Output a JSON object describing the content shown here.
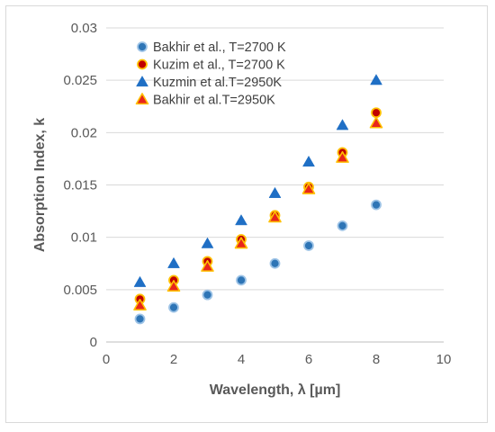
{
  "chart_data": {
    "type": "scatter",
    "xlabel": "Wavelength, λ [µm]",
    "ylabel": "Absorption Index, k",
    "xlim": [
      0,
      10
    ],
    "ylim": [
      0,
      0.03
    ],
    "x_ticks": [
      "0",
      "2",
      "4",
      "6",
      "8",
      "10"
    ],
    "y_ticks": [
      "0",
      "0.005",
      "0.01",
      "0.015",
      "0.02",
      "0.025",
      "0.03"
    ],
    "grid": "horizontal",
    "legend_position": "top-left",
    "series": [
      {
        "name": "Bakhir et al., T=2700 K",
        "marker": "circle",
        "fill": "#2e75b6",
        "stroke": "#9dc3e6",
        "x": [
          1,
          2,
          3,
          4,
          5,
          6,
          7,
          8
        ],
        "y": [
          0.0022,
          0.0033,
          0.0045,
          0.0059,
          0.0075,
          0.0092,
          0.0111,
          0.0131
        ]
      },
      {
        "name": "Kuzim et al., T=2700 K",
        "marker": "circle",
        "fill": "#c00000",
        "stroke": "#ffc000",
        "x": [
          1,
          2,
          3,
          4,
          5,
          6,
          7,
          8
        ],
        "y": [
          0.0041,
          0.0059,
          0.0077,
          0.0098,
          0.0121,
          0.0148,
          0.0181,
          0.0219
        ]
      },
      {
        "name": "Kuzmin et al.T=2950K",
        "marker": "triangle",
        "fill": "#1f6fc5",
        "stroke": "#1f6fc5",
        "x": [
          1,
          2,
          3,
          4,
          5,
          6,
          7,
          8
        ],
        "y": [
          0.0057,
          0.0075,
          0.0094,
          0.0116,
          0.0142,
          0.0172,
          0.0207,
          0.025
        ]
      },
      {
        "name": "Bakhir et al.T=2950K",
        "marker": "triangle",
        "fill": "#e8261b",
        "stroke": "#ffc000",
        "x": [
          1,
          2,
          3,
          4,
          5,
          6,
          7,
          8
        ],
        "y": [
          0.0035,
          0.0053,
          0.0072,
          0.0094,
          0.0119,
          0.0146,
          0.0176,
          0.0209
        ]
      }
    ]
  }
}
